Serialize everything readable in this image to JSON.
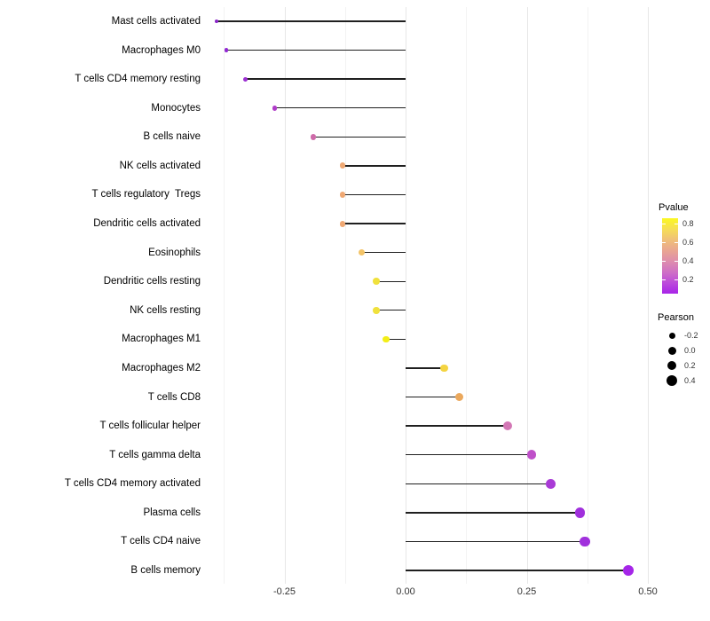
{
  "chart_data": {
    "type": "lollipop",
    "orientation": "horizontal",
    "title": "",
    "xlabel": "",
    "ylabel": "",
    "grid": "vertical-only",
    "xlim": [
      -0.42,
      0.52
    ],
    "x_major_ticks": [
      {
        "label": "-0.25",
        "value": -0.25
      },
      {
        "label": "0.00",
        "value": 0.0
      },
      {
        "label": "0.25",
        "value": 0.25
      },
      {
        "label": "0.50",
        "value": 0.5
      }
    ],
    "x_minor_ticks": [
      -0.375,
      -0.125,
      0.125,
      0.375
    ],
    "rows": [
      {
        "label": "Mast cells activated",
        "pearson": -0.39,
        "color": "#8A25C8"
      },
      {
        "label": "Macrophages M0",
        "pearson": -0.37,
        "color": "#9128D2"
      },
      {
        "label": "T cells CD4 memory resting",
        "pearson": -0.33,
        "color": "#9C2FD2"
      },
      {
        "label": "Monocytes",
        "pearson": -0.27,
        "color": "#AF3CC8"
      },
      {
        "label": "B cells naive",
        "pearson": -0.19,
        "color": "#CE6BA9"
      },
      {
        "label": "NK cells activated",
        "pearson": -0.13,
        "color": "#EFA873"
      },
      {
        "label": "T cells regulatory  Tregs",
        "pearson": -0.13,
        "color": "#EFA873"
      },
      {
        "label": "Dendritic cells activated",
        "pearson": -0.13,
        "color": "#EFA873"
      },
      {
        "label": "Eosinophils",
        "pearson": -0.09,
        "color": "#F3C468"
      },
      {
        "label": "Dendritic cells resting",
        "pearson": -0.06,
        "color": "#F0E13C"
      },
      {
        "label": "NK cells resting",
        "pearson": -0.06,
        "color": "#F0E13C"
      },
      {
        "label": "Macrophages M1",
        "pearson": -0.04,
        "color": "#F3EE17"
      },
      {
        "label": "Macrophages M2",
        "pearson": 0.08,
        "color": "#F4D441"
      },
      {
        "label": "T cells CD8",
        "pearson": 0.11,
        "color": "#EBA85C"
      },
      {
        "label": "T cells follicular helper",
        "pearson": 0.21,
        "color": "#D377B5"
      },
      {
        "label": "T cells gamma delta",
        "pearson": 0.26,
        "color": "#BF50C9"
      },
      {
        "label": "T cells CD4 memory activated",
        "pearson": 0.3,
        "color": "#A93BD6"
      },
      {
        "label": "Plasma cells",
        "pearson": 0.36,
        "color": "#A030DC"
      },
      {
        "label": "T cells CD4 naive",
        "pearson": 0.37,
        "color": "#A030DC"
      },
      {
        "label": "B cells memory",
        "pearson": 0.46,
        "color": "#A526E8"
      }
    ],
    "legends": {
      "pvalue": {
        "title": "Pvalue",
        "ticks": [
          {
            "label": "0.8",
            "value": 0.8
          },
          {
            "label": "0.6",
            "value": 0.6
          },
          {
            "label": "0.4",
            "value": 0.4
          },
          {
            "label": "0.2",
            "value": 0.2
          }
        ],
        "gradient_stops_top_to_bottom": [
          "#FBF821",
          "#F6DE55",
          "#F0C078",
          "#E9A592",
          "#DE8DAD",
          "#CF70C5",
          "#BC4BDB",
          "#A824E8"
        ]
      },
      "pearson": {
        "title": "Pearson",
        "items": [
          {
            "label": "-0.2",
            "size": 7
          },
          {
            "label": "0.0",
            "size": 9
          },
          {
            "label": "0.2",
            "size": 10.5
          },
          {
            "label": "0.4",
            "size": 12
          }
        ]
      }
    }
  },
  "colors": {
    "background": "#ffffff",
    "stem": "#1f1f1f",
    "grid_major": "#e7e7e7",
    "grid_minor": "#f3f3f3",
    "axis_text": "#333333",
    "label_text": "#000000",
    "legend_dot": "#000000"
  }
}
